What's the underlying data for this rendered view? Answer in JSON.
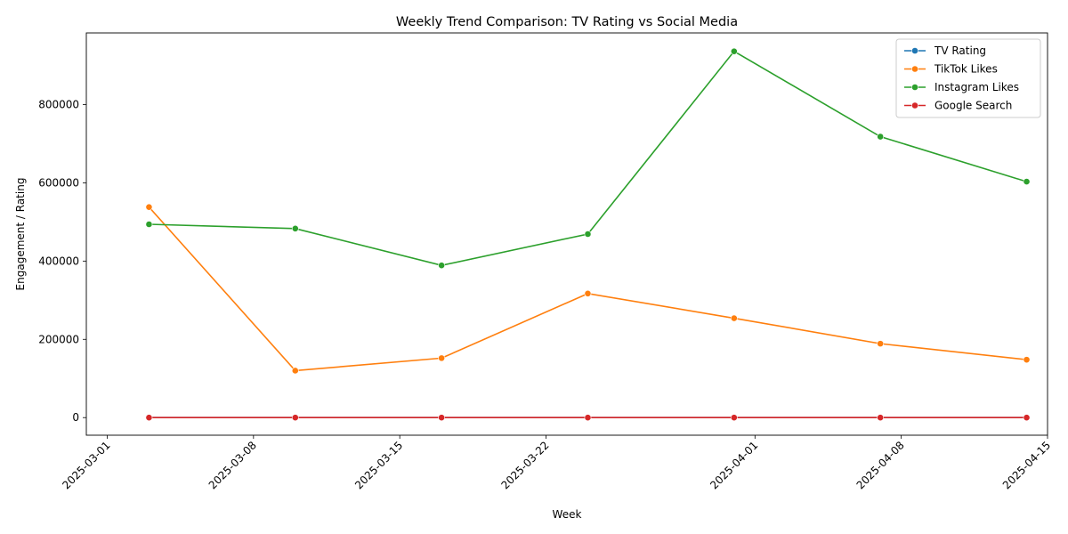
{
  "chart_data": {
    "type": "line",
    "title": "Weekly Trend Comparison: TV Rating vs Social Media",
    "xlabel": "Week",
    "ylabel": "Engagement / Rating",
    "x": [
      "2025-03-03",
      "2025-03-10",
      "2025-03-17",
      "2025-03-24",
      "2025-03-31",
      "2025-04-07",
      "2025-04-14"
    ],
    "x_ticks": [
      "2025-03-01",
      "2025-03-08",
      "2025-03-15",
      "2025-03-22",
      "2025-04-01",
      "2025-04-08",
      "2025-04-15"
    ],
    "xlim": [
      "2025-02-28",
      "2025-04-15"
    ],
    "y_ticks": [
      0,
      200000,
      400000,
      600000,
      800000
    ],
    "ylim": [
      -45000,
      983000
    ],
    "grid": false,
    "legend_position": "top-right",
    "series": [
      {
        "name": "TV Rating",
        "color": "#1f77b4",
        "values": [
          2,
          2,
          2,
          2,
          2,
          2,
          2
        ]
      },
      {
        "name": "TikTok Likes",
        "color": "#ff7f0e",
        "values": [
          538000,
          120000,
          152000,
          317000,
          254000,
          189000,
          148000
        ]
      },
      {
        "name": "Instagram Likes",
        "color": "#2ca02c",
        "values": [
          494000,
          483000,
          389000,
          469000,
          936000,
          718000,
          603000
        ]
      },
      {
        "name": "Google Search",
        "color": "#d62728",
        "values": [
          60,
          60,
          60,
          60,
          60,
          60,
          60
        ]
      }
    ]
  }
}
